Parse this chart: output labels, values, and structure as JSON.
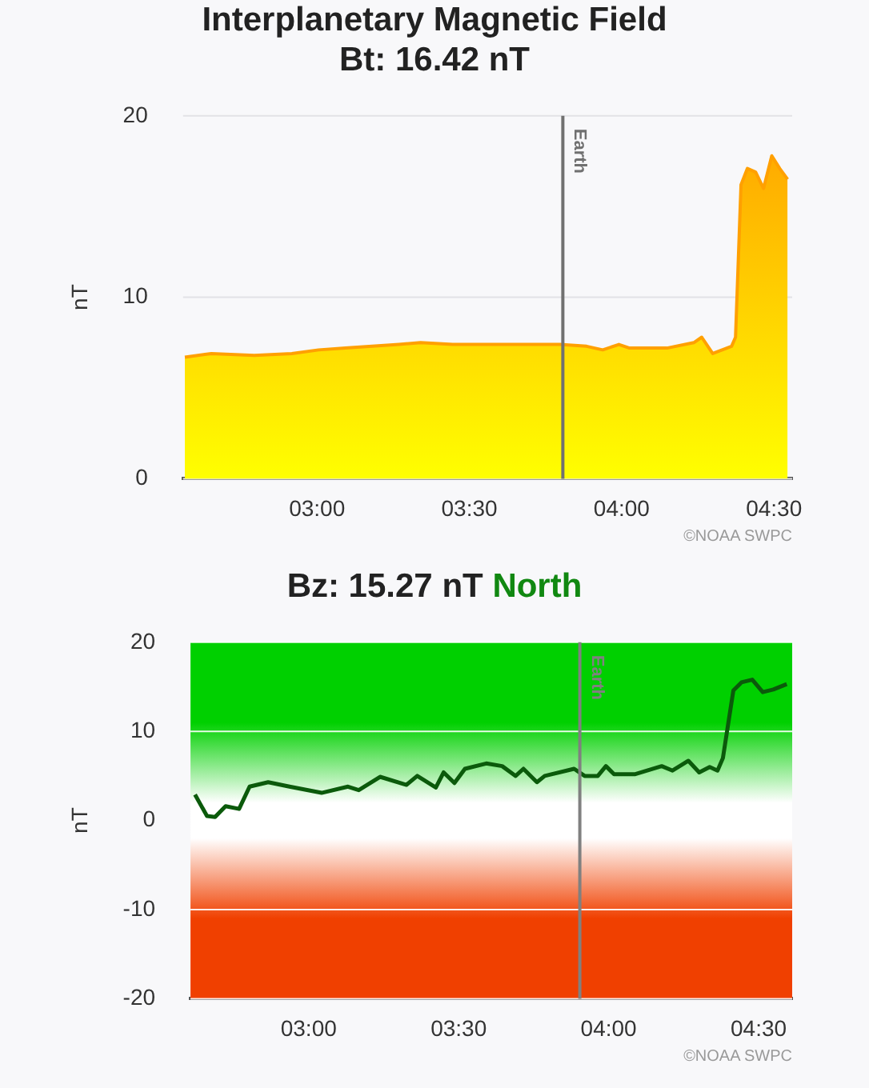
{
  "chart_data": [
    {
      "type": "area",
      "title": "Interplanetary Magnetic Field",
      "subtitle": "Bt: 16.42 nT",
      "ylabel": "nT",
      "series": [
        {
          "color": "#ffa000",
          "x": [
            2.566,
            2.653,
            2.794,
            2.917,
            3.005,
            3.093,
            3.269,
            3.34,
            3.445,
            3.621,
            3.797,
            3.885,
            3.938,
            3.991,
            4.026,
            4.149,
            4.237,
            4.263,
            4.299,
            4.361,
            4.374,
            4.392,
            4.413,
            4.44,
            4.466,
            4.493,
            4.519,
            4.545
          ],
          "values": [
            6.7,
            6.9,
            6.8,
            6.9,
            7.1,
            7.2,
            7.4,
            7.5,
            7.4,
            7.4,
            7.4,
            7.3,
            7.1,
            7.4,
            7.2,
            7.2,
            7.5,
            7.8,
            6.9,
            7.3,
            7.8,
            16.2,
            17.1,
            16.9,
            16.0,
            17.8,
            17.1,
            16.5
          ]
        }
      ],
      "xlim": [
        2.56,
        4.56
      ],
      "xticks": [
        {
          "value": 3,
          "label": "03:00"
        },
        {
          "value": 3.5,
          "label": "03:30"
        },
        {
          "value": 4,
          "label": "04:00"
        },
        {
          "value": 4.5,
          "label": "04:30"
        }
      ],
      "ylim": [
        0,
        20
      ],
      "yticks": [
        0,
        10,
        20
      ],
      "grid": "y",
      "legend": false,
      "marker": "none",
      "ref_lines": [
        {
          "axis": "x",
          "value": 3.807,
          "label": "Earth",
          "color": "#707070"
        }
      ],
      "annotations": [
        "©NOAA SWPC"
      ]
    },
    {
      "type": "line",
      "title": "Bz: 15.27 nT",
      "subtitle": "North",
      "ylabel": "nT",
      "series": [
        {
          "color": "#0b5a0b",
          "x": [
            2.621,
            2.661,
            2.688,
            2.723,
            2.768,
            2.803,
            2.865,
            2.936,
            3.043,
            3.131,
            3.167,
            3.238,
            3.326,
            3.362,
            3.424,
            3.45,
            3.486,
            3.521,
            3.592,
            3.645,
            3.69,
            3.716,
            3.761,
            3.787,
            3.885,
            3.92,
            3.964,
            3.991,
            4.018,
            4.089,
            4.177,
            4.213,
            4.266,
            4.302,
            4.337,
            4.363,
            4.381,
            4.416,
            4.443,
            4.479,
            4.514,
            4.549,
            4.594
          ],
          "values": [
            2.9,
            0.5,
            0.4,
            1.6,
            1.3,
            3.8,
            4.3,
            3.8,
            3.1,
            3.8,
            3.4,
            4.9,
            4.0,
            5.0,
            3.7,
            5.4,
            4.2,
            5.8,
            6.4,
            6.1,
            5.0,
            5.8,
            4.3,
            5.0,
            5.8,
            5.0,
            5.0,
            6.1,
            5.2,
            5.2,
            6.1,
            5.6,
            6.7,
            5.4,
            6.0,
            5.6,
            7.0,
            14.6,
            15.5,
            15.8,
            14.4,
            14.7,
            15.3
          ]
        }
      ],
      "xlim": [
        2.606,
        4.612
      ],
      "xticks": [
        {
          "value": 3,
          "label": "03:00"
        },
        {
          "value": 3.5,
          "label": "03:30"
        },
        {
          "value": 4,
          "label": "04:00"
        },
        {
          "value": 4.5,
          "label": "04:30"
        }
      ],
      "ylim": [
        -20,
        20
      ],
      "yticks": [
        -20,
        -10,
        0,
        10,
        20
      ],
      "grid": "y",
      "legend": false,
      "marker": "none",
      "bands": [
        {
          "axis": "y",
          "from": 0,
          "to": 20,
          "color": "#00d000"
        },
        {
          "axis": "y",
          "from": 0,
          "to": -20,
          "color": "#f04000"
        }
      ],
      "ref_lines": [
        {
          "axis": "x",
          "value": 3.904,
          "label": "Earth",
          "color": "#808080"
        }
      ],
      "annotations": [
        "©NOAA SWPC"
      ]
    }
  ]
}
